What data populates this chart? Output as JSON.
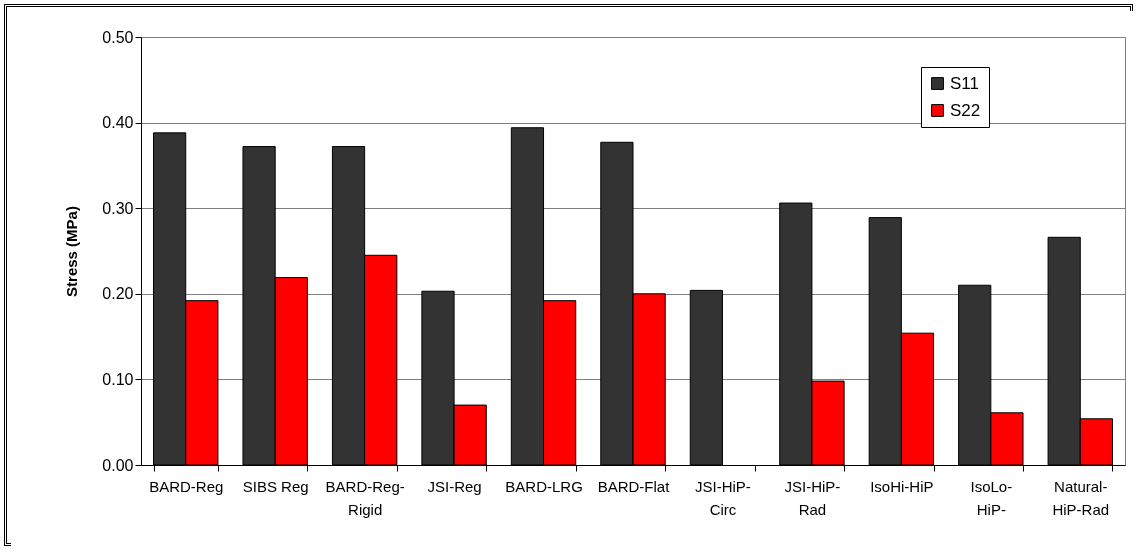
{
  "chart_data": {
    "type": "bar",
    "ylabel": "Stress (MPa)",
    "categories": [
      "BARD-Reg",
      "SIBS Reg",
      "BARD-Reg-Rigid",
      "JSI-Reg",
      "BARD-LRG",
      "BARD-Flat",
      "JSI-HiP-Circ",
      "JSI-HiP-Rad",
      "IsoHi-HiP",
      "IsoLo-HiP-",
      "Natural-HiP-Rad"
    ],
    "series": [
      {
        "name": "S11",
        "color": "#333333",
        "values": [
          0.388,
          0.372,
          0.372,
          0.203,
          0.394,
          0.377,
          0.204,
          0.306,
          0.289,
          0.21,
          0.266
        ]
      },
      {
        "name": "S22",
        "color": "#ff0000",
        "values": [
          0.192,
          0.219,
          0.245,
          0.07,
          0.192,
          0.2,
          null,
          0.098,
          0.154,
          0.061,
          0.054
        ]
      }
    ],
    "ylim": [
      0,
      0.5
    ],
    "yticks": [
      {
        "value": 0,
        "label": "0.00"
      },
      {
        "value": 0.1,
        "label": "0.10"
      },
      {
        "value": 0.2,
        "label": "0.20"
      },
      {
        "value": 0.3,
        "label": "0.30"
      },
      {
        "value": 0.4,
        "label": "0.40"
      },
      {
        "value": 0.5,
        "label": "0.50"
      }
    ],
    "grid": "y",
    "legend": "top right"
  }
}
